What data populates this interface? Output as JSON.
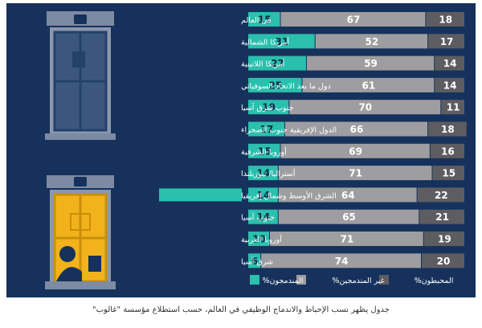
{
  "colors": {
    "panel": "#16325c",
    "engaged": "#2bbfad",
    "not_engaged": "#9e9ea0",
    "disengaged": "#5d5d61",
    "label_highlight": "#2bbfad",
    "window_light": "#f2b21c",
    "window_dark": "#3b577f"
  },
  "chart_data": {
    "type": "bar",
    "stacked": true,
    "orientation": "horizontal",
    "categories": [
      "في العالم",
      "أمريكا الشمالية",
      "أمريكا اللاتينية",
      "دول ما بعد الاتحاد السوفياتي",
      "جنوب شرق آسيا",
      "الدول الإفريقية جنوب الصحراء",
      "أوروبا الشرقية",
      "أستراليا/ نيوزيلندا",
      "الشرق الأوسط وشمال إفريقيا",
      "جنوب آسيا",
      "أوروبا الغربية",
      "شرق آسيا"
    ],
    "highlighted_category_index": 8,
    "series": [
      {
        "name": "المندمجون%",
        "color": "#2bbfad",
        "values": [
          15,
          31,
          27,
          25,
          19,
          17,
          15,
          14,
          14,
          14,
          10,
          6
        ]
      },
      {
        "name": "غير المندمجين%",
        "color": "#9e9ea0",
        "values": [
          67,
          52,
          59,
          61,
          70,
          66,
          69,
          71,
          64,
          65,
          71,
          74
        ]
      },
      {
        "name": "المحبطون%",
        "color": "#5d5d61",
        "values": [
          18,
          17,
          14,
          14,
          11,
          18,
          16,
          15,
          22,
          21,
          19,
          20
        ]
      }
    ],
    "xlim": [
      0,
      100
    ],
    "legend_position": "bottom"
  },
  "caption": "جدول يظهر نسب الإحباط والاندماج الوظيفي في العالم، حسب استطلاع مؤسسة \"غالوب\""
}
